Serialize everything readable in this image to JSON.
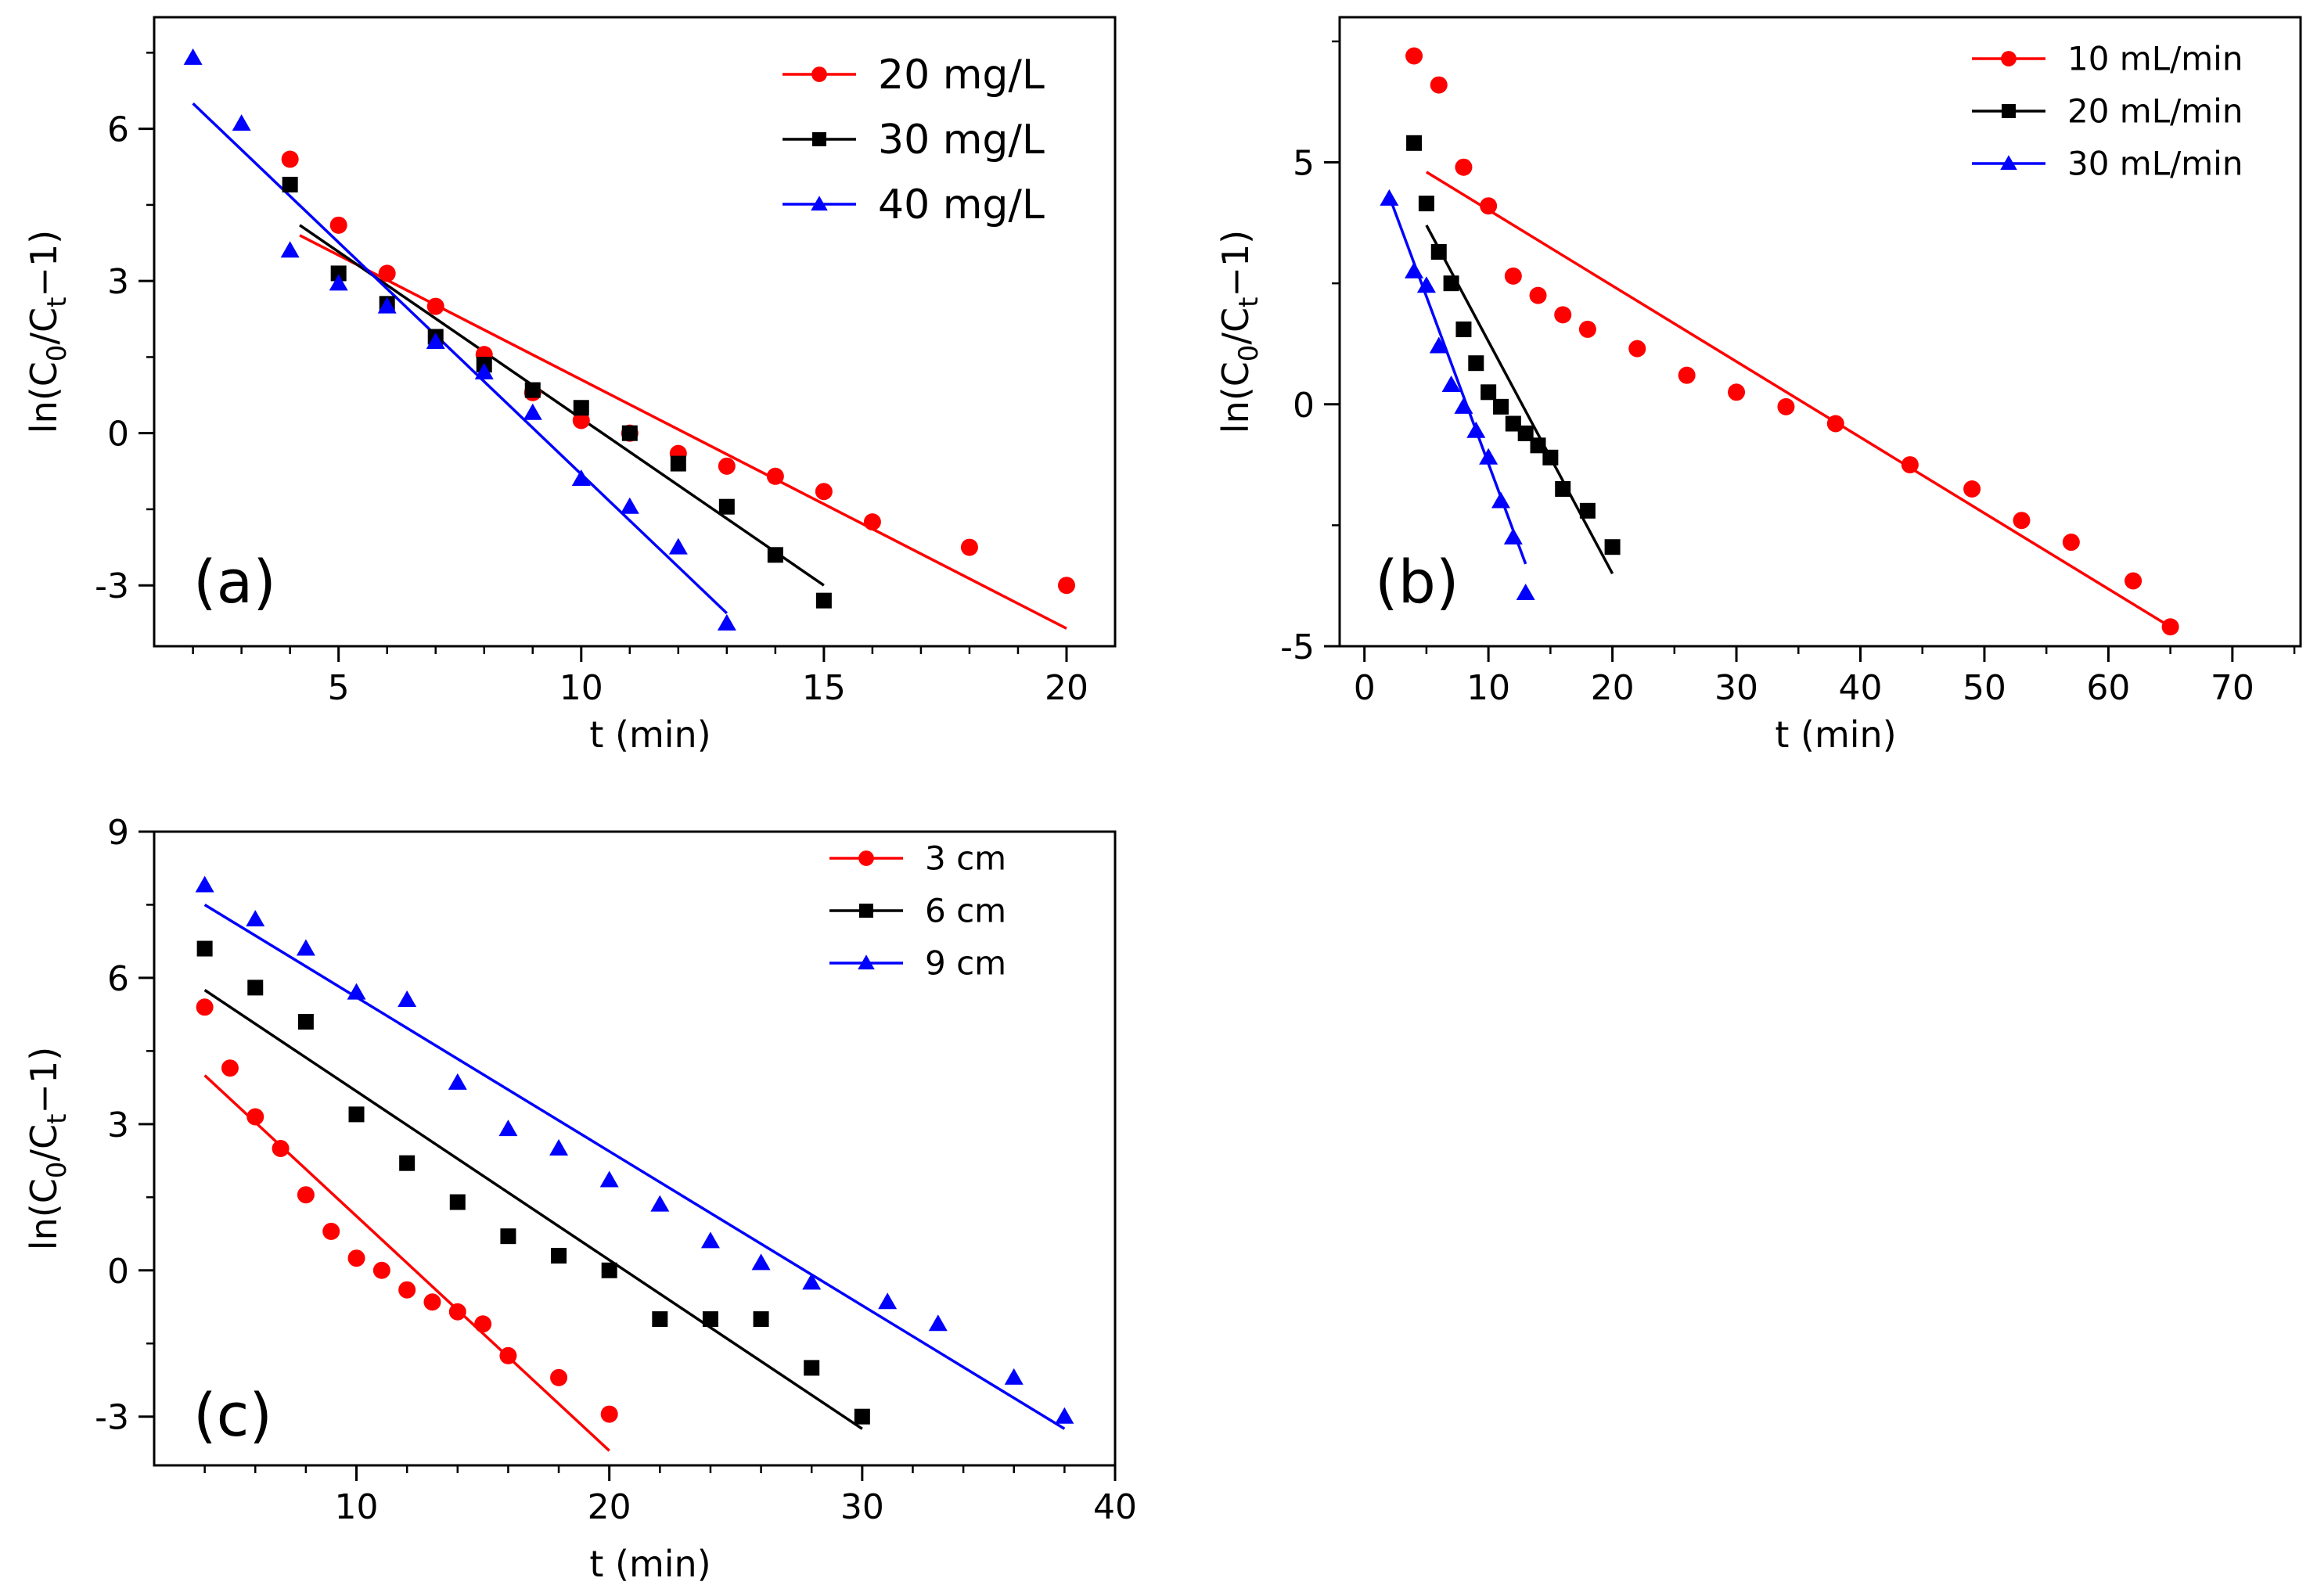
{
  "chart_data": [
    {
      "type": "scatter",
      "panel": "a",
      "panel_label": "(a)",
      "xlabel": "t (min)",
      "ylabel": "ln(C",
      "ylabel_sub0": "0",
      "ylabel_mid": "/C",
      "ylabel_sub1": "t",
      "ylabel_end": "−1)",
      "xlim": [
        1.2,
        21
      ],
      "ylim": [
        -4.2,
        8.2
      ],
      "xticks": [
        5,
        10,
        15,
        20
      ],
      "xtick_labels": [
        "5",
        "10",
        "15",
        "20"
      ],
      "yticks": [
        -3,
        0,
        3,
        6
      ],
      "ytick_labels": [
        "-3",
        "0",
        "3",
        "6"
      ],
      "legend_position": "top-right",
      "series": [
        {
          "name": "20 mg/L",
          "color": "#ff0000",
          "marker": "circle",
          "x": [
            4,
            5,
            6,
            7,
            8,
            9,
            10,
            11,
            12,
            13,
            14,
            15,
            16,
            18,
            20
          ],
          "y": [
            5.4,
            4.1,
            3.15,
            2.5,
            1.55,
            0.8,
            0.25,
            0.0,
            -0.4,
            -0.65,
            -0.85,
            -1.15,
            -1.75,
            -2.25,
            -3.0
          ],
          "fit": [
            [
              4.2,
              3.9
            ],
            [
              20,
              -3.85
            ]
          ]
        },
        {
          "name": "30 mg/L",
          "color": "#000000",
          "marker": "square",
          "x": [
            4,
            5,
            6,
            7,
            8,
            9,
            10,
            11,
            12,
            13,
            14,
            15
          ],
          "y": [
            4.9,
            3.15,
            2.55,
            1.9,
            1.35,
            0.85,
            0.5,
            0.0,
            -0.6,
            -1.45,
            -2.4,
            -3.3
          ],
          "fit": [
            [
              4.2,
              4.1
            ],
            [
              15,
              -3.0
            ]
          ]
        },
        {
          "name": "40 mg/L",
          "color": "#0000ff",
          "marker": "triangle",
          "x": [
            2,
            3,
            4,
            5,
            6,
            7,
            8,
            9,
            10,
            11,
            12,
            13
          ],
          "y": [
            7.4,
            6.1,
            3.6,
            2.95,
            2.5,
            1.8,
            1.2,
            0.4,
            -0.9,
            -1.45,
            -2.25,
            -3.75
          ],
          "fit": [
            [
              2,
              6.5
            ],
            [
              13,
              -3.55
            ]
          ]
        }
      ]
    },
    {
      "type": "scatter",
      "panel": "b",
      "panel_label": "(b)",
      "xlabel": "t (min)",
      "ylabel": "ln(C",
      "ylabel_sub0": "0",
      "ylabel_mid": "/C",
      "ylabel_sub1": "t",
      "ylabel_end": "−1)",
      "xlim": [
        -2,
        75.5
      ],
      "ylim": [
        -5,
        8
      ],
      "xticks": [
        0,
        10,
        20,
        30,
        40,
        50,
        60,
        70
      ],
      "xtick_labels": [
        "0",
        "10",
        "20",
        "30",
        "40",
        "50",
        "60",
        "70"
      ],
      "yticks": [
        -5,
        0,
        5
      ],
      "ytick_labels": [
        "-5",
        "0",
        "5"
      ],
      "legend_position": "top-right",
      "series": [
        {
          "name": "10 mL/min",
          "color": "#ff0000",
          "marker": "circle",
          "x": [
            4,
            6,
            8,
            10,
            12,
            14,
            16,
            18,
            22,
            26,
            30,
            34,
            38,
            44,
            49,
            53,
            57,
            62,
            65
          ],
          "y": [
            7.2,
            6.6,
            4.9,
            4.1,
            2.65,
            2.25,
            1.85,
            1.55,
            1.15,
            0.6,
            0.25,
            -0.05,
            -0.4,
            -1.25,
            -1.75,
            -2.4,
            -2.85,
            -3.65,
            -4.6
          ],
          "fit": [
            [
              5,
              4.8
            ],
            [
              65,
              -4.6
            ]
          ]
        },
        {
          "name": "20 mL/min",
          "color": "#000000",
          "marker": "square",
          "x": [
            4,
            5,
            6,
            7,
            8,
            9,
            10,
            11,
            12,
            13,
            14,
            15,
            16,
            18,
            20
          ],
          "y": [
            5.4,
            4.15,
            3.15,
            2.5,
            1.55,
            0.85,
            0.25,
            -0.05,
            -0.4,
            -0.6,
            -0.85,
            -1.1,
            -1.75,
            -2.2,
            -2.95
          ],
          "fit": [
            [
              5,
              3.7
            ],
            [
              20,
              -3.5
            ]
          ]
        },
        {
          "name": "30 mL/min",
          "color": "#0000ff",
          "marker": "triangle",
          "x": [
            2,
            4,
            5,
            6,
            7,
            8,
            9,
            10,
            11,
            12,
            13
          ],
          "y": [
            4.25,
            2.75,
            2.45,
            1.2,
            0.4,
            -0.05,
            -0.55,
            -1.1,
            -2.0,
            -2.75,
            -3.9
          ],
          "fit": [
            [
              2,
              4.3
            ],
            [
              13,
              -3.3
            ]
          ]
        }
      ]
    },
    {
      "type": "scatter",
      "panel": "c",
      "panel_label": "(c)",
      "xlabel": "t (min)",
      "ylabel": "ln(C",
      "ylabel_sub0": "0",
      "ylabel_mid": "/C",
      "ylabel_sub1": "t",
      "ylabel_end": "−1)",
      "xlim": [
        2,
        40
      ],
      "ylim": [
        -4,
        9
      ],
      "xticks": [
        10,
        20,
        30,
        40
      ],
      "xtick_labels": [
        "10",
        "20",
        "30",
        "40"
      ],
      "yticks": [
        -3,
        0,
        3,
        6,
        9
      ],
      "ytick_labels": [
        "-3",
        "0",
        "3",
        "6",
        "9"
      ],
      "legend_position": "top-right",
      "series": [
        {
          "name": "3 cm",
          "color": "#ff0000",
          "marker": "circle",
          "x": [
            4,
            5,
            6,
            7,
            8,
            9,
            10,
            11,
            12,
            13,
            14,
            15,
            16,
            18,
            20
          ],
          "y": [
            5.4,
            4.15,
            3.15,
            2.5,
            1.55,
            0.8,
            0.25,
            0.0,
            -0.4,
            -0.65,
            -0.85,
            -1.1,
            -1.75,
            -2.2,
            -2.95
          ],
          "fit": [
            [
              4,
              4.0
            ],
            [
              20,
              -3.7
            ]
          ]
        },
        {
          "name": "6 cm",
          "color": "#000000",
          "marker": "square",
          "x": [
            4,
            6,
            8,
            10,
            12,
            14,
            16,
            18,
            20,
            22,
            24,
            26,
            28,
            30
          ],
          "y": [
            6.6,
            5.8,
            5.1,
            3.2,
            2.2,
            1.4,
            0.7,
            0.3,
            0.0,
            -1.0,
            -1.0,
            -1.0,
            -2.0,
            -3.0
          ],
          "fit": [
            [
              4,
              5.75
            ],
            [
              30,
              -3.25
            ]
          ]
        },
        {
          "name": "9 cm",
          "color": "#0000ff",
          "marker": "triangle",
          "x": [
            4,
            6,
            8,
            10,
            12,
            14,
            16,
            18,
            20,
            22,
            24,
            26,
            28,
            31,
            33,
            36,
            38
          ],
          "y": [
            7.9,
            7.2,
            6.6,
            5.7,
            5.55,
            3.85,
            2.9,
            2.5,
            1.85,
            1.35,
            0.6,
            0.15,
            -0.25,
            -0.65,
            -1.1,
            -2.2,
            -3.0
          ],
          "fit": [
            [
              4,
              7.5
            ],
            [
              38,
              -3.25
            ]
          ]
        }
      ]
    }
  ]
}
